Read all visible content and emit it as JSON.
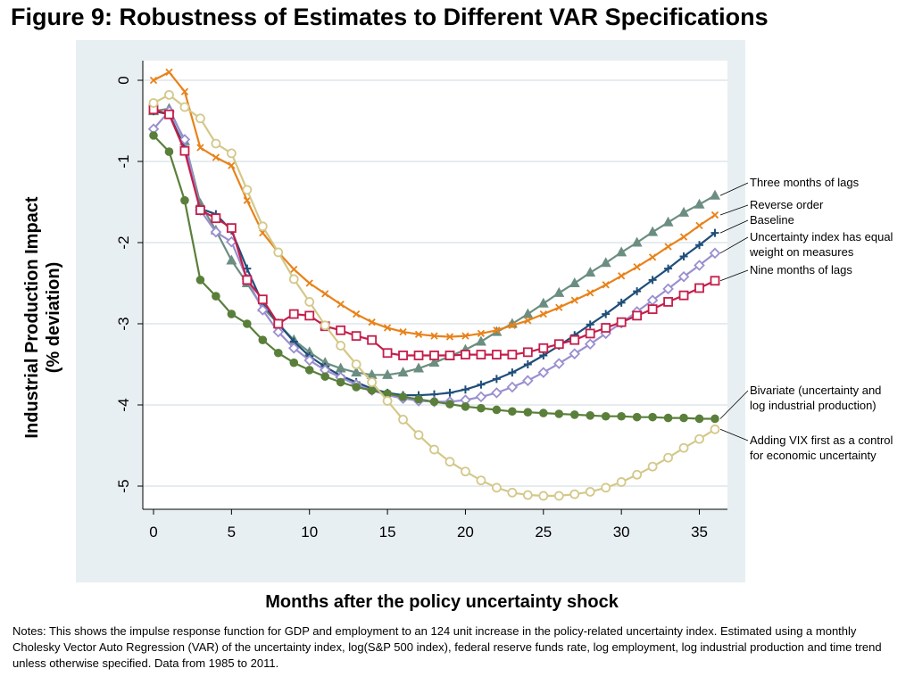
{
  "page": {
    "title": "Figure 9: Robustness of Estimates to Different VAR Specifications",
    "notes": "Notes: This shows the impulse response function for GDP and employment to an 124 unit increase in the policy-related uncertainty index. Estimated using a monthly Cholesky Vector Auto Regression (VAR) of the uncertainty index, log(S&P 500 index), federal reserve funds rate, log employment, log industrial production and time trend unless otherwise specified. Data from 1985 to 2011."
  },
  "chart_data": {
    "type": "line",
    "title": "Figure 9: Robustness of Estimates to Different VAR Specifications",
    "xlabel": "Months after the policy uncertainty shock",
    "ylabel_lines": [
      "Industrial Production Impact",
      "(% deviation)"
    ],
    "xlim": [
      0,
      36
    ],
    "ylim": [
      -5.2,
      0.1
    ],
    "xticks": [
      0,
      5,
      10,
      15,
      20,
      25,
      30,
      35
    ],
    "yticks": [
      0,
      -1,
      -2,
      -3,
      -4,
      -5
    ],
    "grid": true,
    "legend_placement": "right",
    "background": {
      "outer": "#e8eff3",
      "plot": "#ffffff"
    },
    "x": [
      0,
      1,
      2,
      3,
      4,
      5,
      6,
      7,
      8,
      9,
      10,
      11,
      12,
      13,
      14,
      15,
      16,
      17,
      18,
      19,
      20,
      21,
      22,
      23,
      24,
      25,
      26,
      27,
      28,
      29,
      30,
      31,
      32,
      33,
      34,
      35,
      36
    ],
    "series": [
      {
        "name": "Three months of lags",
        "label_lines": [
          "Three months of lags"
        ],
        "color": "#6b8e80",
        "marker": "triangle",
        "values": [
          -0.38,
          -0.35,
          -0.75,
          -1.52,
          -1.85,
          -2.22,
          -2.5,
          -2.8,
          -3.0,
          -3.2,
          -3.35,
          -3.48,
          -3.55,
          -3.6,
          -3.63,
          -3.63,
          -3.6,
          -3.55,
          -3.48,
          -3.4,
          -3.32,
          -3.22,
          -3.1,
          -3.0,
          -2.88,
          -2.75,
          -2.62,
          -2.5,
          -2.37,
          -2.25,
          -2.12,
          -2.0,
          -1.87,
          -1.75,
          -1.63,
          -1.53,
          -1.42
        ]
      },
      {
        "name": "Reverse order",
        "label_lines": [
          "Reverse order"
        ],
        "color": "#e8821a",
        "marker": "x",
        "values": [
          0.0,
          0.1,
          -0.14,
          -0.83,
          -0.95,
          -1.05,
          -1.48,
          -1.88,
          -2.12,
          -2.33,
          -2.5,
          -2.63,
          -2.76,
          -2.88,
          -2.98,
          -3.05,
          -3.1,
          -3.13,
          -3.15,
          -3.16,
          -3.15,
          -3.12,
          -3.08,
          -3.02,
          -2.96,
          -2.88,
          -2.8,
          -2.71,
          -2.62,
          -2.52,
          -2.41,
          -2.3,
          -2.18,
          -2.05,
          -1.93,
          -1.79,
          -1.66
        ]
      },
      {
        "name": "Baseline",
        "label_lines": [
          "Baseline"
        ],
        "color": "#1f4e79",
        "marker": "plus",
        "values": [
          -0.38,
          -0.42,
          -0.82,
          -1.58,
          -1.65,
          -1.85,
          -2.32,
          -2.75,
          -3.0,
          -3.22,
          -3.4,
          -3.53,
          -3.64,
          -3.72,
          -3.8,
          -3.85,
          -3.88,
          -3.88,
          -3.87,
          -3.85,
          -3.81,
          -3.75,
          -3.68,
          -3.6,
          -3.5,
          -3.39,
          -3.27,
          -3.14,
          -3.01,
          -2.88,
          -2.74,
          -2.6,
          -2.46,
          -2.32,
          -2.17,
          -2.03,
          -1.88
        ]
      },
      {
        "name": "Uncertainty index has equal weight on measures",
        "label_lines": [
          "Uncertainty index has equal",
          "weight on measures"
        ],
        "color": "#9a8fd0",
        "marker": "diamond",
        "values": [
          -0.6,
          -0.38,
          -0.73,
          -1.6,
          -1.87,
          -1.99,
          -2.45,
          -2.83,
          -3.1,
          -3.3,
          -3.45,
          -3.57,
          -3.66,
          -3.75,
          -3.82,
          -3.88,
          -3.92,
          -3.95,
          -3.96,
          -3.96,
          -3.94,
          -3.9,
          -3.85,
          -3.78,
          -3.7,
          -3.6,
          -3.49,
          -3.37,
          -3.25,
          -3.12,
          -2.99,
          -2.85,
          -2.71,
          -2.57,
          -2.42,
          -2.28,
          -2.13
        ]
      },
      {
        "name": "Nine months of lags",
        "label_lines": [
          "Nine months of lags"
        ],
        "color": "#c41e4a",
        "marker": "square",
        "values": [
          -0.36,
          -0.42,
          -0.87,
          -1.6,
          -1.7,
          -1.82,
          -2.46,
          -2.7,
          -3.0,
          -2.88,
          -2.9,
          -3.03,
          -3.08,
          -3.15,
          -3.2,
          -3.36,
          -3.39,
          -3.39,
          -3.39,
          -3.39,
          -3.38,
          -3.38,
          -3.38,
          -3.38,
          -3.35,
          -3.3,
          -3.25,
          -3.2,
          -3.12,
          -3.05,
          -2.98,
          -2.9,
          -2.82,
          -2.73,
          -2.65,
          -2.56,
          -2.47
        ]
      },
      {
        "name": "Bivariate (uncertainty and log industrial production)",
        "label_lines": [
          "Bivariate (uncertainty and",
          "log industrial production)"
        ],
        "color": "#5a7f3a",
        "marker": "circle",
        "values": [
          -0.68,
          -0.88,
          -1.48,
          -2.46,
          -2.66,
          -2.88,
          -3.0,
          -3.2,
          -3.36,
          -3.48,
          -3.57,
          -3.65,
          -3.72,
          -3.78,
          -3.82,
          -3.86,
          -3.9,
          -3.93,
          -3.96,
          -3.99,
          -4.02,
          -4.04,
          -4.06,
          -4.08,
          -4.09,
          -4.1,
          -4.11,
          -4.12,
          -4.13,
          -4.14,
          -4.14,
          -4.15,
          -4.15,
          -4.16,
          -4.16,
          -4.17,
          -4.17
        ]
      },
      {
        "name": "Adding VIX first as a control for economic uncertainty",
        "label_lines": [
          "Adding VIX first as a control",
          "for economic uncertainty"
        ],
        "color": "#d4c88a",
        "marker": "hollow-circle",
        "values": [
          -0.28,
          -0.18,
          -0.33,
          -0.47,
          -0.78,
          -0.9,
          -1.35,
          -1.8,
          -2.12,
          -2.45,
          -2.73,
          -3.02,
          -3.27,
          -3.5,
          -3.72,
          -3.95,
          -4.18,
          -4.37,
          -4.55,
          -4.7,
          -4.82,
          -4.93,
          -5.02,
          -5.08,
          -5.11,
          -5.12,
          -5.12,
          -5.1,
          -5.07,
          -5.02,
          -4.95,
          -4.86,
          -4.76,
          -4.65,
          -4.53,
          -4.42,
          -4.3
        ]
      }
    ]
  }
}
